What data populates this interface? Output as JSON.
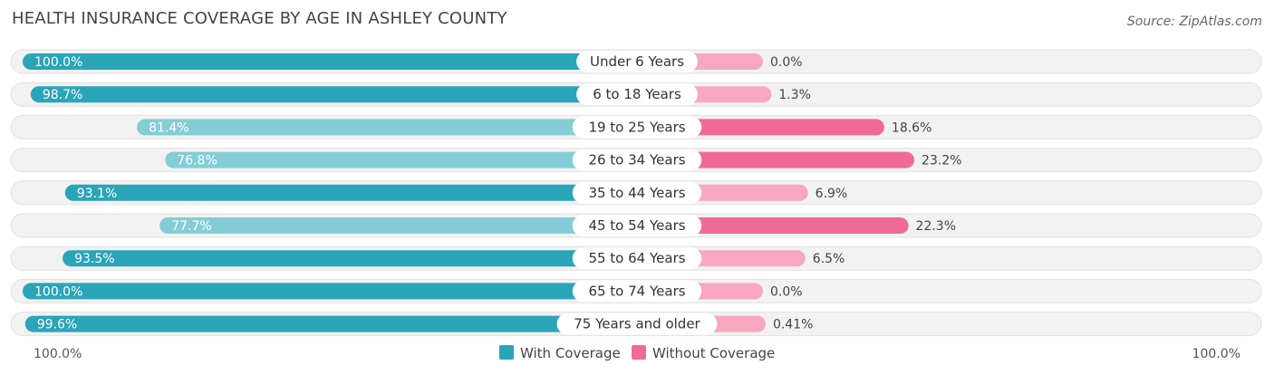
{
  "chart_data": {
    "type": "bar",
    "title": "HEALTH INSURANCE COVERAGE BY AGE IN ASHLEY COUNTY",
    "source": "Source: ZipAtlas.com",
    "categories": [
      "Under 6 Years",
      "6 to 18 Years",
      "19 to 25 Years",
      "26 to 34 Years",
      "35 to 44 Years",
      "45 to 54 Years",
      "55 to 64 Years",
      "65 to 74 Years",
      "75 Years and older"
    ],
    "series": [
      {
        "name": "With Coverage",
        "values": [
          100.0,
          98.7,
          81.4,
          76.8,
          93.1,
          77.7,
          93.5,
          100.0,
          99.6
        ],
        "labels": [
          "100.0%",
          "98.7%",
          "81.4%",
          "76.8%",
          "93.1%",
          "77.7%",
          "93.5%",
          "100.0%",
          "99.6%"
        ]
      },
      {
        "name": "Without Coverage",
        "values": [
          0.0,
          1.3,
          18.6,
          23.2,
          6.9,
          22.3,
          6.5,
          0.0,
          0.41
        ],
        "labels": [
          "0.0%",
          "1.3%",
          "18.6%",
          "23.2%",
          "6.9%",
          "22.3%",
          "6.5%",
          "0.0%",
          "0.41%"
        ]
      }
    ],
    "axis_left_label": "100.0%",
    "axis_right_label": "100.0%",
    "legend": [
      "With Coverage",
      "Without Coverage"
    ],
    "colors": {
      "with_strong": "#2aa5b8",
      "with_light": "#84cdd6",
      "without_strong": "#f06b93",
      "without_light": "#f7a8c0",
      "track": "#f1f1f1"
    }
  }
}
